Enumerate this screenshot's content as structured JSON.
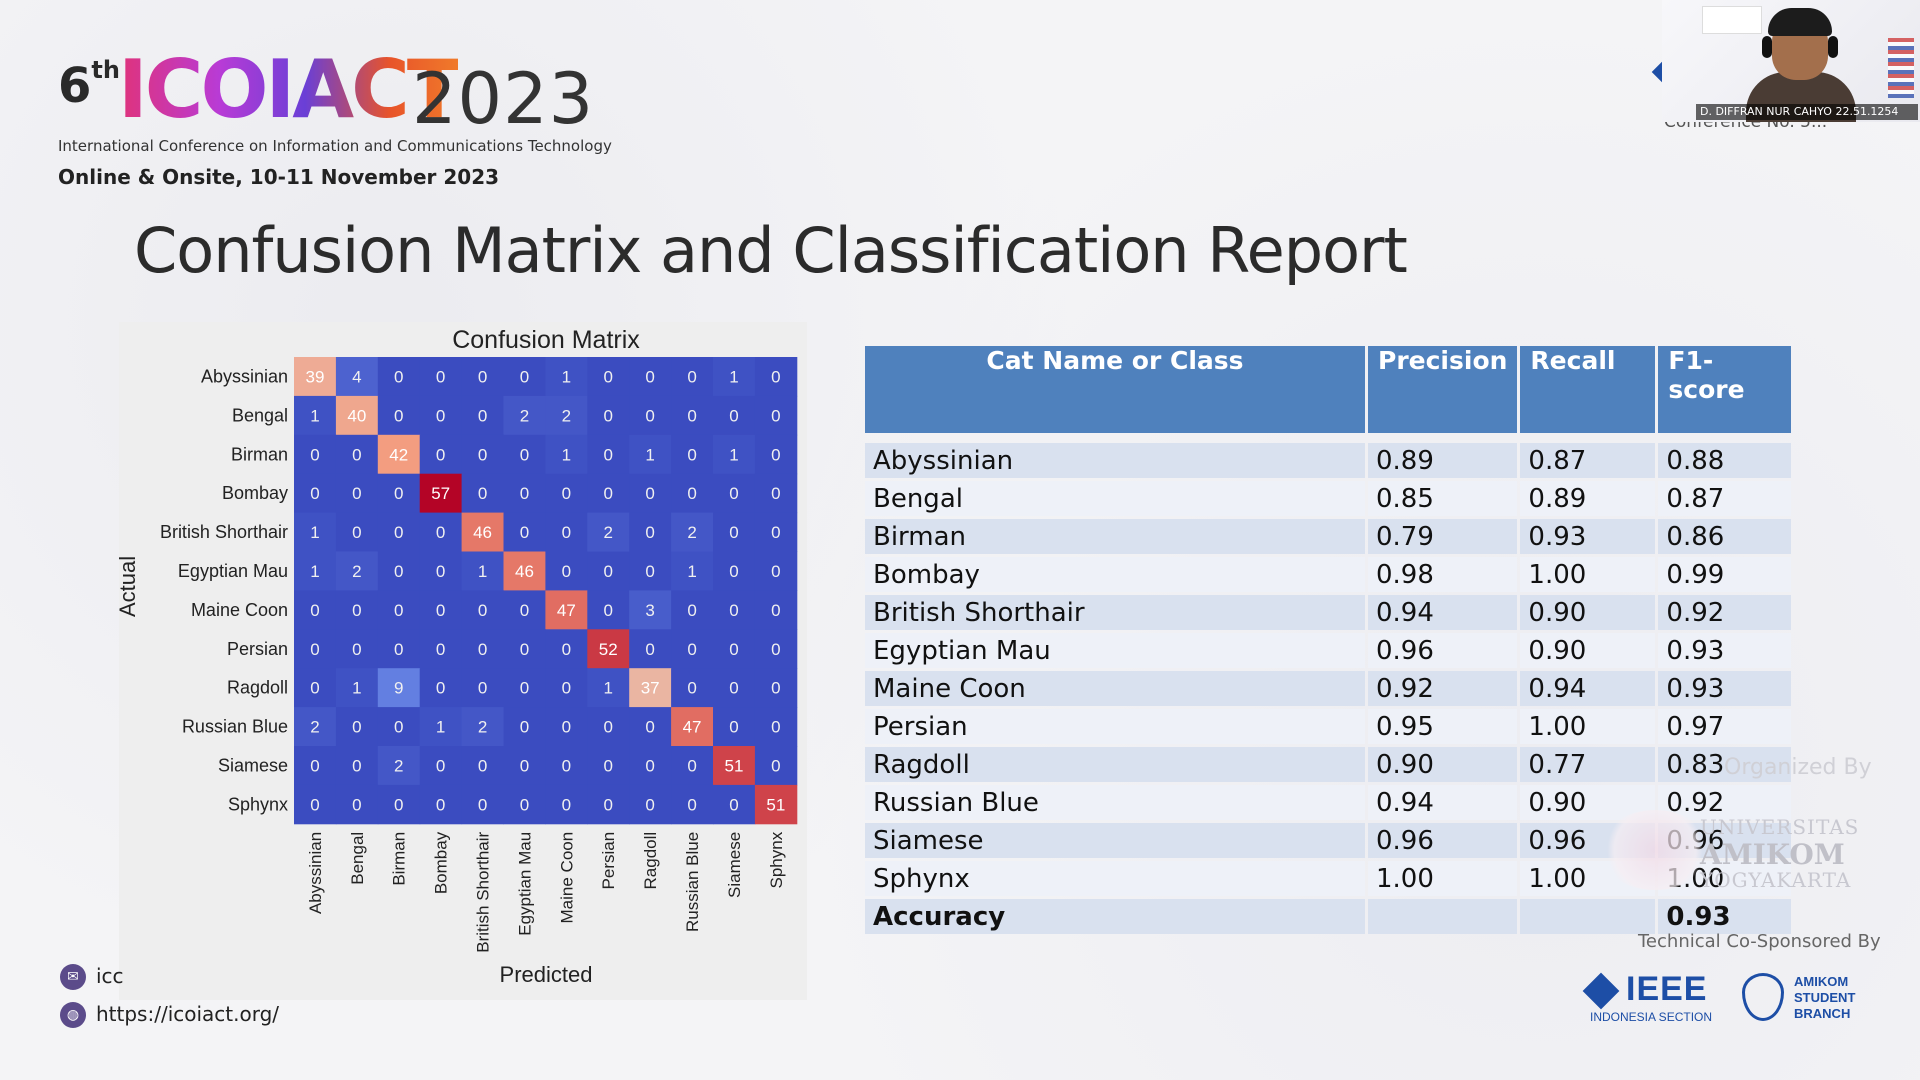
{
  "header": {
    "ordinal_num": "6",
    "ordinal_suffix": "th",
    "logo_word": "ICOIACT",
    "year": "2023",
    "conference_full_name": "International Conference on Information and Communications Technology",
    "date_line": "Online & Onsite,  10-11 November 2023"
  },
  "slide": {
    "title": "Confusion Matrix and Classification Report"
  },
  "webcam": {
    "participant_name": "D. DIFFRAN NUR CAHYO 22.51.1254",
    "conference_no": "Conference No. 5..."
  },
  "colors": {
    "cm_low": "#3b4cc0",
    "cm_high": "#b40426",
    "table_header": "#4f81bd",
    "row_odd": "#d9e1ef",
    "row_even": "#eef1f8"
  },
  "chart_data": {
    "type": "heatmap",
    "title": "Confusion Matrix",
    "xlabel": "Predicted",
    "ylabel": "Actual",
    "labels": [
      "Abyssinian",
      "Bengal",
      "Birman",
      "Bombay",
      "British Shorthair",
      "Egyptian Mau",
      "Maine Coon",
      "Persian",
      "Ragdoll",
      "Russian Blue",
      "Siamese",
      "Sphynx"
    ],
    "matrix": [
      [
        39,
        4,
        0,
        0,
        0,
        0,
        1,
        0,
        0,
        0,
        1,
        0
      ],
      [
        1,
        40,
        0,
        0,
        0,
        2,
        2,
        0,
        0,
        0,
        0,
        0
      ],
      [
        0,
        0,
        42,
        0,
        0,
        0,
        1,
        0,
        1,
        0,
        1,
        0
      ],
      [
        0,
        0,
        0,
        57,
        0,
        0,
        0,
        0,
        0,
        0,
        0,
        0
      ],
      [
        1,
        0,
        0,
        0,
        46,
        0,
        0,
        2,
        0,
        2,
        0,
        0
      ],
      [
        1,
        2,
        0,
        0,
        1,
        46,
        0,
        0,
        0,
        1,
        0,
        0
      ],
      [
        0,
        0,
        0,
        0,
        0,
        0,
        47,
        0,
        3,
        0,
        0,
        0
      ],
      [
        0,
        0,
        0,
        0,
        0,
        0,
        0,
        52,
        0,
        0,
        0,
        0
      ],
      [
        0,
        1,
        9,
        0,
        0,
        0,
        0,
        1,
        37,
        0,
        0,
        0
      ],
      [
        2,
        0,
        0,
        1,
        2,
        0,
        0,
        0,
        0,
        47,
        0,
        0
      ],
      [
        0,
        0,
        2,
        0,
        0,
        0,
        0,
        0,
        0,
        0,
        51,
        0
      ],
      [
        0,
        0,
        0,
        0,
        0,
        0,
        0,
        0,
        0,
        0,
        0,
        51
      ]
    ],
    "value_range": [
      0,
      57
    ]
  },
  "report": {
    "headers": [
      "Cat Name or Class",
      "Precision",
      "Recall",
      "F1-score"
    ],
    "rows": [
      {
        "name": "Abyssinian",
        "precision": "0.89",
        "recall": "0.87",
        "f1": "0.88"
      },
      {
        "name": "Bengal",
        "precision": "0.85",
        "recall": "0.89",
        "f1": "0.87"
      },
      {
        "name": "Birman",
        "precision": "0.79",
        "recall": "0.93",
        "f1": "0.86"
      },
      {
        "name": "Bombay",
        "precision": "0.98",
        "recall": "1.00",
        "f1": "0.99"
      },
      {
        "name": "British Shorthair",
        "precision": "0.94",
        "recall": "0.90",
        "f1": "0.92"
      },
      {
        "name": "Egyptian Mau",
        "precision": "0.96",
        "recall": "0.90",
        "f1": "0.93"
      },
      {
        "name": "Maine Coon",
        "precision": "0.92",
        "recall": "0.94",
        "f1": "0.93"
      },
      {
        "name": "Persian",
        "precision": "0.95",
        "recall": "1.00",
        "f1": "0.97"
      },
      {
        "name": "Ragdoll",
        "precision": "0.90",
        "recall": "0.77",
        "f1": "0.83"
      },
      {
        "name": "Russian Blue",
        "precision": "0.94",
        "recall": "0.90",
        "f1": "0.92"
      },
      {
        "name": "Siamese",
        "precision": "0.96",
        "recall": "0.96",
        "f1": "0.96"
      },
      {
        "name": "Sphynx",
        "precision": "1.00",
        "recall": "1.00",
        "f1": "1.00"
      }
    ],
    "accuracy_label": "Accuracy",
    "accuracy_value": "0.93"
  },
  "footer": {
    "organized_by": "Organized By",
    "univ_line1": "UNIVERSITAS",
    "univ_line2": "AMIKOM",
    "univ_line3": "YOGYAKARTA",
    "sponsored_by": "Technical Co-Sponsored By",
    "ieee_word": "IEEE",
    "ieee_section": "INDONESIA SECTION",
    "student_branch": "AMIKOM STUDENT BRANCH",
    "email_text": "icc",
    "website": "https://icoiact.org/"
  }
}
